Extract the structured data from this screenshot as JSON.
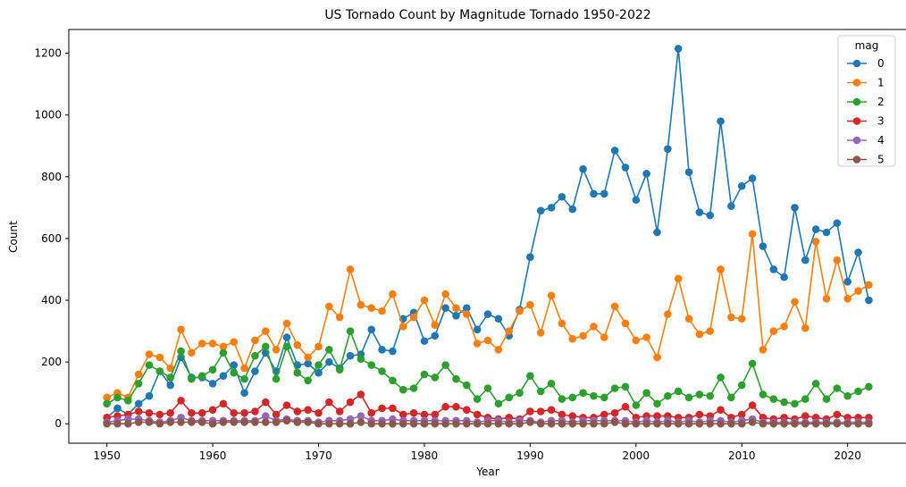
{
  "chart_data": {
    "type": "line",
    "title": "US Tornado Count by Magnitude Tornado 1950-2022",
    "xlabel": "Year",
    "ylabel": "Count",
    "xlim": [
      1946.4,
      2025.6
    ],
    "ylim": [
      -63,
      1277
    ],
    "xticks": [
      1950,
      1960,
      1970,
      1980,
      1990,
      2000,
      2010,
      2020
    ],
    "yticks": [
      0,
      200,
      400,
      600,
      800,
      1000,
      1200
    ],
    "legend_title": "mag",
    "legend_position": "upper-right",
    "x_start": 1950,
    "series": [
      {
        "name": "0",
        "color": "#1f77b4",
        "values": [
          20,
          50,
          30,
          65,
          90,
          170,
          125,
          215,
          150,
          150,
          130,
          155,
          190,
          100,
          170,
          230,
          170,
          280,
          190,
          195,
          165,
          200,
          180,
          220,
          225,
          305,
          240,
          235,
          340,
          360,
          268,
          285,
          375,
          350,
          375,
          305,
          355,
          340,
          285,
          370,
          540,
          690,
          700,
          735,
          695,
          825,
          745,
          745,
          885,
          830,
          725,
          810,
          620,
          890,
          1215,
          815,
          685,
          675,
          980,
          705,
          770,
          795,
          575,
          500,
          475,
          700,
          530,
          630,
          620,
          650,
          460,
          555,
          400
        ]
      },
      {
        "name": "1",
        "color": "#ff7f0e",
        "values": [
          85,
          100,
          85,
          160,
          225,
          215,
          180,
          305,
          230,
          260,
          260,
          250,
          265,
          180,
          270,
          300,
          240,
          325,
          255,
          215,
          250,
          380,
          345,
          500,
          385,
          375,
          365,
          420,
          315,
          345,
          400,
          320,
          420,
          375,
          355,
          260,
          270,
          240,
          300,
          365,
          385,
          295,
          415,
          325,
          275,
          285,
          315,
          280,
          380,
          325,
          270,
          280,
          215,
          355,
          470,
          340,
          290,
          300,
          500,
          345,
          340,
          615,
          240,
          300,
          315,
          395,
          310,
          590,
          405,
          530,
          405,
          430,
          450
        ]
      },
      {
        "name": "2",
        "color": "#2ca02c",
        "values": [
          65,
          85,
          75,
          130,
          190,
          170,
          150,
          235,
          145,
          155,
          175,
          230,
          165,
          145,
          220,
          250,
          145,
          250,
          165,
          140,
          190,
          240,
          175,
          300,
          210,
          190,
          170,
          140,
          110,
          115,
          160,
          150,
          190,
          145,
          125,
          80,
          115,
          65,
          85,
          100,
          155,
          105,
          130,
          80,
          85,
          100,
          90,
          85,
          115,
          120,
          60,
          100,
          65,
          90,
          105,
          85,
          95,
          90,
          150,
          85,
          125,
          195,
          95,
          80,
          70,
          65,
          80,
          130,
          80,
          115,
          90,
          105,
          120
        ]
      },
      {
        "name": "3",
        "color": "#d62728",
        "values": [
          20,
          25,
          30,
          40,
          35,
          30,
          35,
          75,
          35,
          35,
          45,
          65,
          35,
          35,
          40,
          70,
          30,
          60,
          40,
          45,
          35,
          70,
          40,
          70,
          95,
          35,
          50,
          50,
          30,
          35,
          30,
          30,
          55,
          55,
          45,
          30,
          20,
          15,
          20,
          15,
          40,
          40,
          45,
          30,
          25,
          20,
          20,
          30,
          35,
          55,
          20,
          25,
          25,
          25,
          20,
          20,
          30,
          25,
          45,
          20,
          30,
          60,
          20,
          15,
          20,
          15,
          25,
          20,
          15,
          30,
          20,
          20,
          20
        ]
      },
      {
        "name": "4",
        "color": "#9467bd",
        "values": [
          5,
          10,
          15,
          15,
          10,
          5,
          10,
          20,
          10,
          10,
          10,
          10,
          10,
          10,
          10,
          25,
          10,
          15,
          10,
          10,
          5,
          10,
          10,
          15,
          25,
          10,
          10,
          15,
          10,
          10,
          10,
          10,
          10,
          10,
          10,
          5,
          10,
          10,
          5,
          10,
          10,
          5,
          10,
          10,
          5,
          10,
          10,
          10,
          10,
          10,
          5,
          10,
          5,
          10,
          5,
          10,
          5,
          10,
          10,
          5,
          10,
          15,
          5,
          5,
          5,
          5,
          5,
          5,
          5,
          5,
          5,
          5,
          5
        ]
      },
      {
        "name": "5",
        "color": "#8c564b",
        "values": [
          0,
          0,
          0,
          5,
          5,
          0,
          5,
          5,
          5,
          5,
          0,
          5,
          5,
          5,
          5,
          5,
          5,
          10,
          5,
          5,
          0,
          0,
          0,
          0,
          5,
          0,
          0,
          0,
          0,
          0,
          0,
          0,
          0,
          0,
          0,
          0,
          0,
          0,
          0,
          0,
          5,
          0,
          0,
          0,
          0,
          0,
          0,
          0,
          5,
          0,
          0,
          0,
          0,
          0,
          0,
          0,
          0,
          0,
          0,
          0,
          0,
          5,
          0,
          0,
          0,
          0,
          0,
          0,
          0,
          0,
          0,
          0,
          0
        ]
      }
    ]
  }
}
